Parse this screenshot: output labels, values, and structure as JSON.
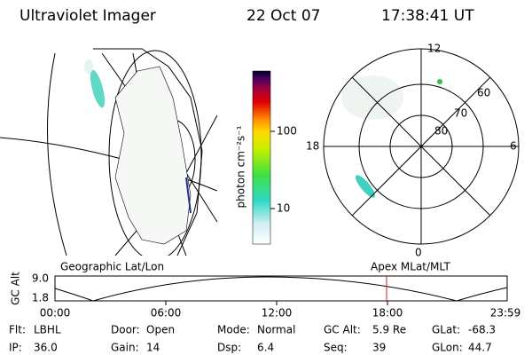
{
  "header": {
    "title": "Ultraviolet Imager",
    "date": "22 Oct 07",
    "time": "17:38:41 UT"
  },
  "colorbar": {
    "label": "photon cm⁻²s⁻¹",
    "ticks": [
      "100",
      "10"
    ]
  },
  "polar": {
    "mlt_labels": [
      "12",
      "18",
      "6",
      "0"
    ],
    "lat_labels": [
      "60",
      "70",
      "80"
    ]
  },
  "orbit": {
    "left_title": "Geographic Lat/Lon",
    "right_title": "Apex MLat/MLT",
    "axis_label": "GC Alt",
    "y_labels": [
      "9.0",
      "1.8"
    ],
    "time_labels": [
      "00:00",
      "06:00",
      "12:00",
      "18:00",
      "23:59"
    ]
  },
  "info": [
    [
      {
        "label": "Flt:",
        "value": "LBHL"
      },
      {
        "label": "Door:",
        "value": "Open"
      },
      {
        "label": "Mode:",
        "value": "Normal"
      },
      {
        "label": "GC Alt:",
        "value": "5.9 Re"
      },
      {
        "label": "GLat:",
        "value": "-68.3"
      }
    ],
    [
      {
        "label": "IP:",
        "value": "36.0"
      },
      {
        "label": "Gain:",
        "value": "14"
      },
      {
        "label": "Dsp:",
        "value": "6.4"
      },
      {
        "label": "Seq:",
        "value": "39"
      },
      {
        "label": "GLon:",
        "value": "44.7"
      }
    ]
  ]
}
